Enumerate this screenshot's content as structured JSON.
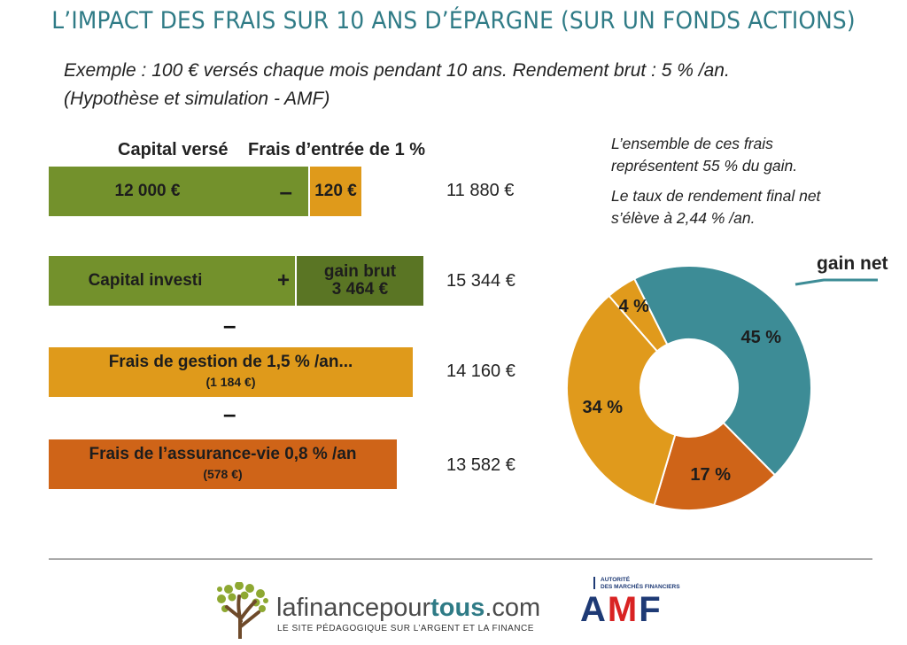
{
  "title": "L’IMPACT DES FRAIS SUR 10 ANS D’ÉPARGNE (SUR UN FONDS ACTIONS)",
  "subtitle_line1": "Exemple : 100 € versés chaque mois pendant 10 ans. Rendement brut : 5 % /an.",
  "subtitle_line2": "(Hypothèse et simulation - AMF)",
  "headers": {
    "capital_verse": "Capital versé",
    "frais_entree": "Frais d’entrée de 1 %"
  },
  "rows": {
    "r1": {
      "capital": "12 000 €",
      "operator": "–",
      "fee": "120 €",
      "total": "11 880 €"
    },
    "r2": {
      "label": "Capital investi",
      "operator": "+",
      "gain_label": "gain brut",
      "gain_value": "3 464 €",
      "total": "15 344 €"
    },
    "sep1": "–",
    "r3": {
      "label": "Frais de gestion de 1,5 % /an...",
      "detail": "(1 184 €)",
      "total": "14 160 €"
    },
    "sep2": "–",
    "r4": {
      "label": "Frais de l’assurance-vie 0,8 % /an",
      "detail": "(578 €)",
      "total": "13 582 €"
    }
  },
  "note": {
    "line1": "L’ensemble de ces frais",
    "line2": "représentent 55 % du gain.",
    "line3": "Le taux de rendement final net",
    "line4": "s’élève à 2,44 % /an."
  },
  "chart_data": {
    "type": "pie",
    "donut": true,
    "slices": [
      {
        "label": "4 %",
        "value": 4,
        "color": "#e09a1c"
      },
      {
        "label": "45 %",
        "value": 45,
        "color": "#3d8c96"
      },
      {
        "label": "17 %",
        "value": 17,
        "color": "#cf6418"
      },
      {
        "label": "34 %",
        "value": 34,
        "color": "#e09a1c"
      }
    ],
    "annotation": "gain net",
    "annotation_slice": 1
  },
  "colors": {
    "title": "#2f7b86",
    "green": "#73912c",
    "dark_green": "#5a7524",
    "orange": "#df9a1b",
    "burnt_orange": "#cf6418",
    "teal": "#3d8c96",
    "amf_blue": "#1e3a75",
    "amf_red": "#d92323"
  },
  "footer": {
    "brand_part1": "lafinancepour",
    "brand_part2": "tous",
    "brand_part3": ".com",
    "tagline": "LE SITE PÉDAGOGIQUE SUR L’ARGENT ET LA FINANCE",
    "amf_small_line1": "AUTORITÉ",
    "amf_small_line2": "DES MARCHÉS FINANCIERS",
    "amf_a": "A",
    "amf_m": "M",
    "amf_f": "F",
    "tree_icon": "tree-icon"
  }
}
